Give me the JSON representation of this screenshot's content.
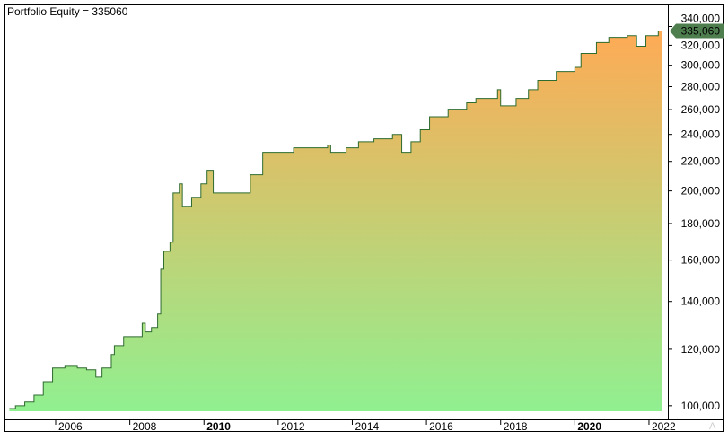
{
  "chart_data": {
    "type": "area",
    "title": "Portfolio Equity = 335060",
    "y_scale": "log",
    "ylim": [
      95700,
      365000
    ],
    "xlim": [
      "2004-09",
      "2022-05"
    ],
    "grid": false,
    "y_ticks": [
      100000,
      120000,
      140000,
      160000,
      180000,
      200000,
      220000,
      240000,
      260000,
      280000,
      300000,
      320000,
      340000
    ],
    "y_tick_labels": [
      "100,000",
      "120,000",
      "140,000",
      "160,000",
      "180,000",
      "200,000",
      "220,000",
      "240,000",
      "260,000",
      "280,000",
      "300,000",
      "320,000",
      "340,000"
    ],
    "x_ticks": [
      "2006",
      "2008",
      "2010",
      "2012",
      "2014",
      "2016",
      "2018",
      "2020",
      "2022"
    ],
    "x_ticks_bold": [
      "2010",
      "2020"
    ],
    "last_value_label": "335,060",
    "colors": {
      "line": "#2E6B2E",
      "fill_bottom": "#90F090",
      "fill_top": "#FFAA55",
      "marker": "#4E7D4E"
    },
    "series": [
      {
        "points": [
          [
            "2004-10",
            99100
          ],
          [
            "2004-12",
            100000
          ],
          [
            "2005-03",
            101200
          ],
          [
            "2005-06",
            103500
          ],
          [
            "2005-09",
            108100
          ],
          [
            "2005-12",
            112950
          ],
          [
            "2006-04",
            113600
          ],
          [
            "2006-08",
            112950
          ],
          [
            "2006-11",
            112300
          ],
          [
            "2007-02",
            109700
          ],
          [
            "2007-04",
            112950
          ],
          [
            "2007-07",
            118000
          ],
          [
            "2007-08",
            121400
          ],
          [
            "2007-11",
            125000
          ],
          [
            "2008-02",
            125000
          ],
          [
            "2008-05",
            130500
          ],
          [
            "2008-06",
            126900
          ],
          [
            "2008-08",
            128700
          ],
          [
            "2008-10",
            134400
          ],
          [
            "2008-11",
            155300
          ],
          [
            "2008-12",
            164600
          ],
          [
            "2009-02",
            169500
          ],
          [
            "2009-03",
            198700
          ],
          [
            "2009-05",
            204600
          ],
          [
            "2009-06",
            190300
          ],
          [
            "2009-09",
            195900
          ],
          [
            "2009-12",
            204600
          ],
          [
            "2010-02",
            213800
          ],
          [
            "2010-04",
            198700
          ],
          [
            "2010-10",
            198700
          ],
          [
            "2011-04",
            210700
          ],
          [
            "2011-08",
            226500
          ],
          [
            "2012-06",
            229800
          ],
          [
            "2013-05",
            231900
          ],
          [
            "2013-06",
            226500
          ],
          [
            "2013-11",
            229800
          ],
          [
            "2014-03",
            234400
          ],
          [
            "2014-08",
            236600
          ],
          [
            "2015-02",
            240000
          ],
          [
            "2015-05",
            226500
          ],
          [
            "2015-08",
            234400
          ],
          [
            "2015-11",
            243600
          ],
          [
            "2016-02",
            254100
          ],
          [
            "2016-08",
            260300
          ],
          [
            "2017-02",
            265800
          ],
          [
            "2017-05",
            269500
          ],
          [
            "2017-12",
            277300
          ],
          [
            "2018-01",
            263200
          ],
          [
            "2018-06",
            269500
          ],
          [
            "2018-10",
            277300
          ],
          [
            "2019-01",
            285700
          ],
          [
            "2019-07",
            294000
          ],
          [
            "2020-01",
            298000
          ],
          [
            "2020-03",
            311700
          ],
          [
            "2020-08",
            322800
          ],
          [
            "2020-12",
            328300
          ],
          [
            "2021-06",
            330000
          ],
          [
            "2021-09",
            319000
          ],
          [
            "2021-12",
            330000
          ],
          [
            "2022-04",
            335060
          ]
        ]
      }
    ]
  }
}
